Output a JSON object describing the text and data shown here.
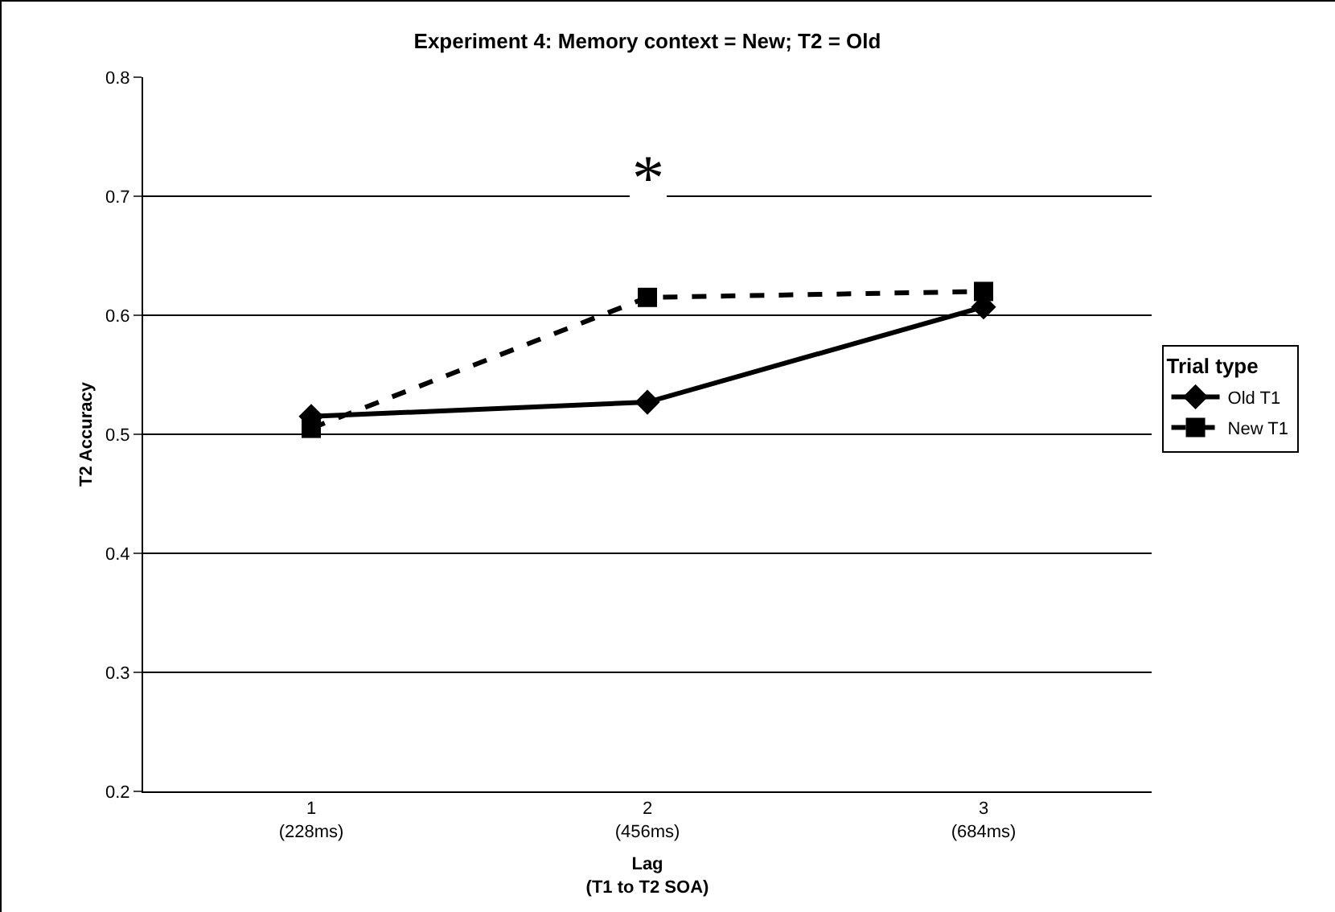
{
  "chart_data": {
    "type": "line",
    "title": "Experiment 4: Memory context = New; T2 = Old",
    "xlabel": "Lag\n(T1 to T2 SOA)",
    "ylabel": "T2 Accuracy",
    "legend_title": "Trial type",
    "categories": [
      "1\n(228ms)",
      "2\n(456ms)",
      "3\n(684ms)"
    ],
    "series": [
      {
        "name": "Old T1",
        "color": "#000000",
        "marker": "diamond",
        "line_style": "solid",
        "values": [
          0.515,
          0.527,
          0.607
        ]
      },
      {
        "name": "New T1",
        "color": "#000000",
        "marker": "square",
        "line_style": "dashed",
        "values": [
          0.505,
          0.615,
          0.62
        ]
      }
    ],
    "ylim": [
      0.2,
      0.8
    ],
    "yticks": [
      0.2,
      0.3,
      0.4,
      0.5,
      0.6,
      0.7,
      0.8
    ],
    "grid": "y",
    "legend": "right",
    "annotations": [
      "*"
    ]
  }
}
